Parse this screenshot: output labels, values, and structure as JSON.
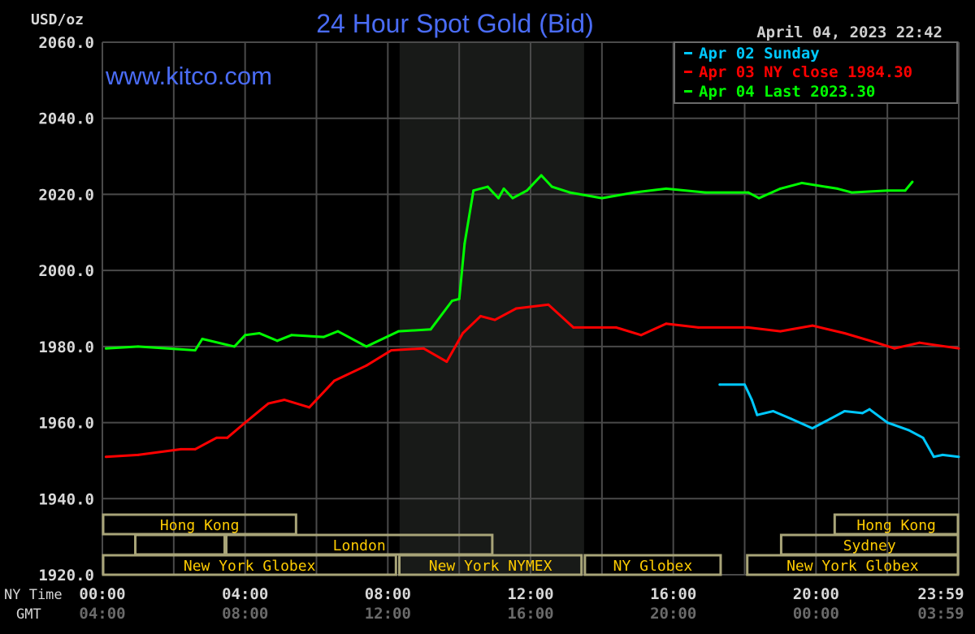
{
  "chart_data": {
    "type": "line",
    "title": "24 Hour Spot Gold (Bid)",
    "ylabel": "USD/oz",
    "watermark": "www.kitco.com",
    "timestamp": "April 04, 2023 22:42",
    "ylim": [
      1920,
      2060
    ],
    "yticks": [
      "2060.0",
      "2040.0",
      "2020.0",
      "2000.0",
      "1980.0",
      "1960.0",
      "1940.0",
      "1920.0"
    ],
    "xlim": [
      0,
      24
    ],
    "x_unit": "hours (NY Time)",
    "grid": true,
    "legend_position": "top-right",
    "x_axis": {
      "ny_label": "NY Time",
      "gmt_label": "GMT",
      "ny_ticks": [
        "00:00",
        "04:00",
        "08:00",
        "12:00",
        "16:00",
        "20:00",
        "23:59"
      ],
      "gmt_ticks": [
        "04:00",
        "08:00",
        "12:00",
        "16:00",
        "20:00",
        "00:00",
        "03:59"
      ],
      "tick_hours": [
        0,
        4,
        8,
        12,
        16,
        20,
        24
      ]
    },
    "shaded_region_hours": [
      8.33,
      13.5
    ],
    "series": [
      {
        "name": "Apr 02 Sunday",
        "color": "#00c8ff",
        "x": [
          17.3,
          18.0,
          18.2,
          18.35,
          18.8,
          19.3,
          19.9,
          20.4,
          20.8,
          21.3,
          21.5,
          22.0,
          22.6,
          23.0,
          23.3,
          23.55,
          24.0
        ],
        "y": [
          1970,
          1970,
          1966,
          1962,
          1963,
          1961,
          1958.5,
          1961,
          1963,
          1962.5,
          1963.5,
          1960,
          1958,
          1956,
          1951,
          1951.5,
          1951
        ]
      },
      {
        "name": "Apr 03 NY close 1984.30",
        "color": "#ff0000",
        "x": [
          0.1,
          1.0,
          2.2,
          2.6,
          3.2,
          3.5,
          4.0,
          4.65,
          5.1,
          5.8,
          6.5,
          7.4,
          8.1,
          9.0,
          9.65,
          10.1,
          10.6,
          11.0,
          11.6,
          12.5,
          13.2,
          14.4,
          15.1,
          15.8,
          16.7,
          18.1,
          19.0,
          19.9,
          20.8,
          21.7,
          22.2,
          22.9,
          24.0
        ],
        "y": [
          1951,
          1951.5,
          1953,
          1953,
          1956,
          1956,
          1960,
          1965,
          1966,
          1964,
          1971,
          1975,
          1979,
          1979.5,
          1976,
          1983.5,
          1988,
          1987,
          1990,
          1991,
          1985,
          1985,
          1983,
          1986,
          1985,
          1985,
          1984,
          1985.5,
          1983.5,
          1981,
          1979.5,
          1981,
          1979.5
        ]
      },
      {
        "name": "Apr 04 Last 2023.30",
        "color": "#00ff00",
        "x": [
          0.1,
          1.0,
          2.6,
          2.8,
          3.7,
          4.0,
          4.4,
          4.9,
          5.3,
          6.2,
          6.6,
          7.4,
          8.3,
          9.2,
          9.8,
          10.0,
          10.15,
          10.4,
          10.8,
          11.1,
          11.25,
          11.5,
          11.9,
          12.3,
          12.6,
          13.1,
          14.0,
          14.9,
          15.8,
          16.9,
          18.1,
          18.4,
          19.0,
          19.6,
          20.6,
          21.0,
          22.0,
          22.5,
          22.7
        ],
        "y": [
          1979.5,
          1980,
          1979,
          1982,
          1980,
          1983,
          1983.5,
          1981.5,
          1983,
          1982.5,
          1984,
          1980,
          1984,
          1984.5,
          1992,
          1992.5,
          2007,
          2021,
          2022,
          2019,
          2021.5,
          2019,
          2021,
          2025,
          2022,
          2020.5,
          2019,
          2020.5,
          2021.5,
          2020.5,
          2020.5,
          2019,
          2021.5,
          2023,
          2021.5,
          2020.5,
          2021,
          2021,
          2023.3
        ]
      }
    ],
    "sessions": [
      {
        "label": "Hong Kong",
        "row": 0,
        "start": 0,
        "end": 5.45
      },
      {
        "label": "Hong Kong",
        "row": 0,
        "start": 20.5,
        "end": 24
      },
      {
        "label": "",
        "row": 1,
        "start": 0.9,
        "end": 3.45
      },
      {
        "label": "London",
        "row": 1,
        "start": 3.45,
        "end": 10.95
      },
      {
        "label": "Sydney",
        "row": 1,
        "start": 19.0,
        "end": 24
      },
      {
        "label": "New York Globex",
        "row": 2,
        "start": 0,
        "end": 8.25
      },
      {
        "label": "New York NYMEX",
        "row": 2,
        "start": 8.3,
        "end": 13.45
      },
      {
        "label": "NY Globex",
        "row": 2,
        "start": 13.5,
        "end": 17.35
      },
      {
        "label": "New York Globex",
        "row": 2,
        "start": 18.05,
        "end": 24
      }
    ],
    "colors": {
      "title": "#4a6cf5",
      "session_text": "#ffcc00",
      "session_border": "#a8a478",
      "axis_text": "#d8d8d8",
      "gmt_text": "#6a6a6a",
      "grid": "#4a4a4a"
    }
  }
}
